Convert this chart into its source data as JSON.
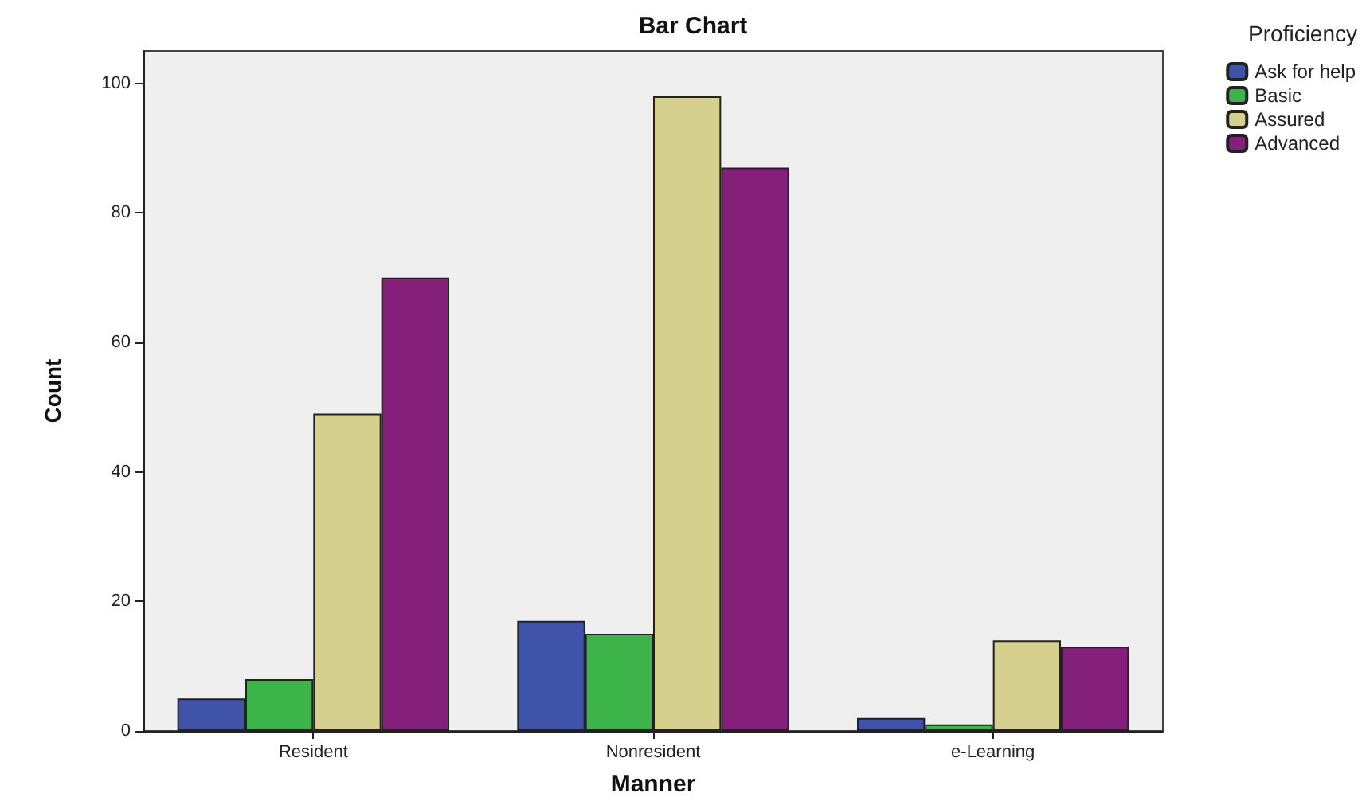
{
  "chart_data": {
    "type": "bar",
    "title": "Bar Chart",
    "xlabel": "Manner",
    "ylabel": "Count",
    "legend_title": "Proficiency",
    "categories": [
      "Resident",
      "Nonresident",
      "e-Learning"
    ],
    "series": [
      {
        "name": "Ask for help",
        "color": "#3f54a8",
        "values": [
          5,
          17,
          2
        ]
      },
      {
        "name": "Basic",
        "color": "#3cb44a",
        "values": [
          8,
          15,
          1
        ]
      },
      {
        "name": "Assured",
        "color": "#d5d08e",
        "values": [
          49,
          98,
          14
        ]
      },
      {
        "name": "Advanced",
        "color": "#85207a",
        "values": [
          70,
          87,
          13
        ]
      }
    ],
    "ylim": [
      0,
      105
    ],
    "yticks": [
      0,
      20,
      40,
      60,
      80,
      100
    ],
    "grid": false,
    "legend": "top right"
  }
}
